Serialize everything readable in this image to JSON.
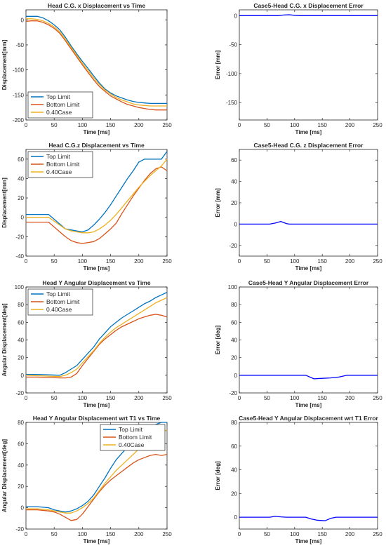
{
  "chart_data": [
    {
      "type": "line",
      "title": "Head C.G. x Displacement vs Time",
      "xlabel": "Time [ms]",
      "ylabel": "Displacement[mm]",
      "xlim": [
        0,
        250
      ],
      "ylim": [
        -200,
        20
      ],
      "xticks": [
        0,
        50,
        100,
        150,
        200,
        250
      ],
      "yticks": [
        0,
        -50,
        -100,
        -150,
        -200
      ],
      "legend": "bottom-left",
      "series": [
        {
          "name": "Top Limit",
          "color": "#0072BD",
          "x": [
            0,
            10,
            20,
            30,
            40,
            50,
            60,
            70,
            80,
            90,
            100,
            110,
            120,
            130,
            140,
            150,
            160,
            170,
            180,
            190,
            200,
            210,
            220,
            230,
            240,
            250
          ],
          "y": [
            7,
            7,
            7,
            4,
            -2,
            -10,
            -20,
            -35,
            -52,
            -68,
            -83,
            -97,
            -112,
            -126,
            -138,
            -146,
            -152,
            -156,
            -160,
            -163,
            -165,
            -166,
            -167,
            -167,
            -167,
            -167
          ]
        },
        {
          "name": "Bottom Limit",
          "color": "#D95319",
          "x": [
            0,
            10,
            20,
            30,
            40,
            50,
            60,
            70,
            80,
            90,
            100,
            110,
            120,
            130,
            140,
            150,
            160,
            170,
            180,
            190,
            200,
            210,
            220,
            230,
            240,
            250
          ],
          "y": [
            -3,
            -2,
            -2,
            -5,
            -10,
            -17,
            -27,
            -42,
            -58,
            -74,
            -90,
            -105,
            -120,
            -133,
            -143,
            -152,
            -158,
            -164,
            -169,
            -172,
            -175,
            -177,
            -179,
            -180,
            -180,
            -180
          ]
        },
        {
          "name": "0.40Case",
          "color": "#EDB120",
          "x": [
            0,
            10,
            20,
            30,
            40,
            50,
            60,
            70,
            80,
            90,
            100,
            110,
            120,
            130,
            140,
            150,
            160,
            170,
            180,
            190,
            200,
            210,
            220,
            230,
            240,
            250
          ],
          "y": [
            2,
            2,
            1,
            -2,
            -7,
            -14,
            -24,
            -39,
            -55,
            -71,
            -87,
            -101,
            -116,
            -129,
            -140,
            -148,
            -155,
            -160,
            -164,
            -168,
            -170,
            -171,
            -172,
            -172,
            -172,
            -172
          ]
        }
      ]
    },
    {
      "type": "line",
      "title": "Case5-Head C.G. x Displacement Error",
      "xlabel": "Time [ms]",
      "ylabel": "Error [mm]",
      "xlim": [
        0,
        250
      ],
      "ylim": [
        -180,
        10
      ],
      "xticks": [
        0,
        50,
        100,
        150,
        200,
        250
      ],
      "yticks": [
        0,
        -50,
        -100,
        -150
      ],
      "legend": "none",
      "series": [
        {
          "color": "#0000FF",
          "x": [
            0,
            70,
            80,
            90,
            100,
            110,
            250
          ],
          "y": [
            0,
            0,
            1,
            1.5,
            0.5,
            0,
            0
          ]
        }
      ]
    },
    {
      "type": "line",
      "title": "Head C.G.z Displacement vs Time",
      "xlabel": "Time [ms]",
      "ylabel": "Displacement[mm]",
      "xlim": [
        0,
        250
      ],
      "ylim": [
        -40,
        70
      ],
      "xticks": [
        0,
        50,
        100,
        150,
        200,
        250
      ],
      "yticks": [
        -40,
        -20,
        0,
        20,
        40,
        60
      ],
      "legend": "top-left",
      "series": [
        {
          "name": "Top Limit",
          "color": "#0072BD",
          "x": [
            0,
            20,
            40,
            50,
            60,
            70,
            80,
            90,
            100,
            110,
            120,
            130,
            140,
            150,
            160,
            170,
            180,
            190,
            200,
            210,
            220,
            230,
            240,
            250
          ],
          "y": [
            3,
            3,
            3,
            -2,
            -7,
            -12,
            -13,
            -14,
            -15,
            -13,
            -8,
            -2,
            5,
            13,
            22,
            31,
            40,
            48,
            57,
            60,
            60,
            60,
            60,
            68
          ]
        },
        {
          "name": "Bottom Limit",
          "color": "#D95319",
          "x": [
            0,
            20,
            40,
            50,
            60,
            70,
            80,
            90,
            100,
            110,
            120,
            130,
            140,
            150,
            160,
            170,
            180,
            190,
            200,
            210,
            220,
            230,
            240,
            250
          ],
          "y": [
            -5,
            -5,
            -5,
            -10,
            -15,
            -20,
            -24,
            -26,
            -27,
            -26,
            -25,
            -22,
            -17,
            -12,
            -6,
            4,
            13,
            22,
            30,
            38,
            45,
            50,
            52,
            48
          ]
        },
        {
          "name": "0.40Case",
          "color": "#EDB120",
          "x": [
            0,
            20,
            40,
            50,
            60,
            70,
            80,
            90,
            100,
            110,
            120,
            130,
            140,
            150,
            160,
            170,
            180,
            190,
            200,
            210,
            220,
            230,
            240,
            250
          ],
          "y": [
            0,
            0,
            0,
            -4,
            -8,
            -12,
            -14,
            -15,
            -16,
            -16,
            -15,
            -12,
            -8,
            -3,
            3,
            10,
            17,
            24,
            31,
            37,
            43,
            48,
            53,
            60
          ]
        }
      ]
    },
    {
      "type": "line",
      "title": "Case5-Head C.G. z Displacement Error",
      "xlabel": "Time [ms]",
      "ylabel": "Error [mm]",
      "xlim": [
        0,
        250
      ],
      "ylim": [
        -30,
        70
      ],
      "xticks": [
        0,
        50,
        100,
        150,
        200,
        250
      ],
      "yticks": [
        -20,
        0,
        20,
        40,
        60
      ],
      "legend": "none",
      "series": [
        {
          "color": "#0000FF",
          "x": [
            0,
            55,
            65,
            75,
            85,
            90,
            250
          ],
          "y": [
            0,
            0,
            1,
            2.5,
            0.5,
            0,
            0
          ]
        }
      ]
    },
    {
      "type": "line",
      "title": "Head Y Angular Displacement vs Time",
      "xlabel": "Time [ms]",
      "ylabel": "Angular Displacement[deg]",
      "xlim": [
        0,
        250
      ],
      "ylim": [
        -20,
        100
      ],
      "xticks": [
        0,
        50,
        100,
        150,
        200,
        250
      ],
      "yticks": [
        -20,
        0,
        20,
        40,
        60,
        80,
        100
      ],
      "legend": "top-left",
      "series": [
        {
          "name": "Top Limit",
          "color": "#0072BD",
          "x": [
            0,
            20,
            40,
            60,
            70,
            80,
            90,
            100,
            110,
            120,
            130,
            140,
            150,
            160,
            170,
            180,
            190,
            200,
            210,
            220,
            230,
            240,
            250
          ],
          "y": [
            1,
            1,
            0.5,
            0,
            3,
            7,
            11,
            18,
            25,
            32,
            41,
            48,
            55,
            60,
            65,
            69,
            73,
            77,
            81,
            84,
            88,
            91,
            94
          ]
        },
        {
          "name": "Bottom Limit",
          "color": "#D95319",
          "x": [
            0,
            20,
            40,
            60,
            70,
            80,
            90,
            100,
            110,
            120,
            130,
            140,
            150,
            160,
            170,
            180,
            190,
            200,
            210,
            220,
            230,
            240,
            250
          ],
          "y": [
            -2,
            -2,
            -2.5,
            -3,
            -3,
            -2,
            2,
            11,
            19,
            27,
            35,
            41,
            46,
            51,
            55,
            58,
            61,
            64,
            66,
            68,
            69,
            68,
            66
          ]
        },
        {
          "name": "0.40Case",
          "color": "#EDB120",
          "x": [
            0,
            20,
            40,
            60,
            70,
            80,
            90,
            100,
            110,
            120,
            130,
            140,
            150,
            160,
            170,
            180,
            190,
            200,
            210,
            220,
            230,
            240,
            250
          ],
          "y": [
            0,
            -0.5,
            -1,
            -1.5,
            0,
            3,
            7,
            14,
            21,
            28,
            36,
            43,
            49,
            54,
            58,
            62,
            66,
            70,
            74,
            78,
            82,
            85,
            88
          ]
        }
      ]
    },
    {
      "type": "line",
      "title": "Case5-Head Y Angular Displacement Error",
      "xlabel": "Time [ms]",
      "ylabel": "Error [deg]",
      "xlim": [
        0,
        250
      ],
      "ylim": [
        -20,
        100
      ],
      "xticks": [
        0,
        50,
        100,
        150,
        200,
        250
      ],
      "yticks": [
        -20,
        0,
        20,
        40,
        60,
        80,
        100
      ],
      "legend": "none",
      "series": [
        {
          "color": "#0000FF",
          "x": [
            0,
            120,
            135,
            150,
            165,
            180,
            195,
            250
          ],
          "y": [
            0,
            0,
            -4,
            -3.5,
            -3,
            -2,
            0,
            0
          ]
        }
      ]
    },
    {
      "type": "line",
      "title": "Head Y Angular Displacement wrt T1 vs Time",
      "xlabel": "Time [ms]",
      "ylabel": "Angular Displacement[deg]",
      "xlim": [
        0,
        250
      ],
      "ylim": [
        -20,
        80
      ],
      "xticks": [
        0,
        50,
        100,
        150,
        200,
        250
      ],
      "yticks": [
        -20,
        0,
        20,
        40,
        60,
        80
      ],
      "legend": "top-right",
      "series": [
        {
          "name": "Top Limit",
          "color": "#0072BD",
          "x": [
            0,
            20,
            40,
            50,
            60,
            70,
            80,
            90,
            100,
            110,
            120,
            130,
            140,
            150,
            160,
            170,
            180,
            190,
            200,
            210,
            220,
            230,
            240,
            250
          ],
          "y": [
            1,
            1,
            0,
            -2,
            -3,
            -4,
            -3,
            -1,
            2,
            6,
            12,
            20,
            28,
            37,
            45,
            51,
            57,
            62,
            66,
            70,
            74,
            78,
            80,
            80
          ]
        },
        {
          "name": "Bottom Limit",
          "color": "#D95319",
          "x": [
            0,
            20,
            40,
            50,
            60,
            70,
            80,
            90,
            100,
            110,
            120,
            130,
            140,
            150,
            160,
            170,
            180,
            190,
            200,
            210,
            220,
            230,
            240,
            250
          ],
          "y": [
            -2,
            -2,
            -3,
            -4,
            -6,
            -9,
            -12,
            -11,
            -6,
            1,
            8,
            15,
            21,
            26,
            30,
            34,
            38,
            42,
            45,
            47,
            49,
            50,
            49,
            50
          ]
        },
        {
          "name": "0.40Case",
          "color": "#EDB120",
          "x": [
            0,
            20,
            40,
            50,
            60,
            70,
            80,
            90,
            100,
            110,
            120,
            130,
            140,
            150,
            160,
            170,
            180,
            190,
            200,
            210,
            220,
            230,
            240,
            250
          ],
          "y": [
            -1,
            -1,
            -2,
            -3,
            -4,
            -5,
            -5,
            -3,
            0,
            4,
            9,
            16,
            23,
            29,
            35,
            40,
            45,
            50,
            55,
            59,
            63,
            67,
            70,
            73
          ]
        }
      ]
    },
    {
      "type": "line",
      "title": "Case5-Head Y Angular Displacement wrt T1 Error",
      "xlabel": "Time [ms]",
      "ylabel": "Error [deg]",
      "xlim": [
        0,
        250
      ],
      "ylim": [
        -10,
        80
      ],
      "xticks": [
        0,
        50,
        100,
        150,
        200,
        250
      ],
      "yticks": [
        0,
        20,
        40,
        60,
        80
      ],
      "legend": "none",
      "series": [
        {
          "color": "#0000FF",
          "x": [
            0,
            30,
            55,
            65,
            75,
            85,
            120,
            130,
            140,
            155,
            165,
            175,
            250
          ],
          "y": [
            0,
            0,
            0,
            0.7,
            0.3,
            0,
            0,
            -1.5,
            -2.5,
            -3,
            -1,
            0,
            0
          ]
        }
      ]
    }
  ]
}
